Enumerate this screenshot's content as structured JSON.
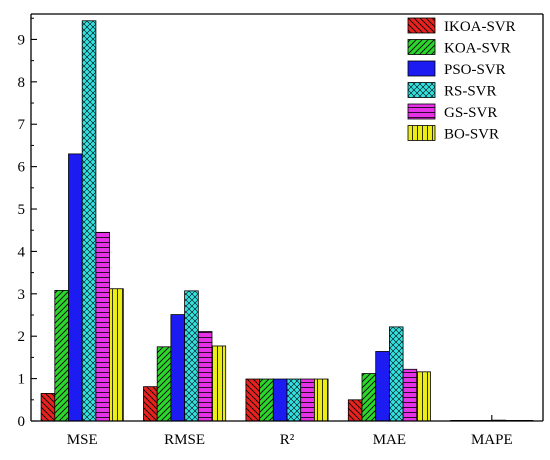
{
  "chart_data": {
    "type": "bar",
    "title": "",
    "xlabel": "",
    "ylabel": "",
    "categories": [
      "MSE",
      "RMSE",
      "R²",
      "MAE",
      "MAPE"
    ],
    "ylim": [
      0,
      9.6
    ],
    "yticks": [
      0,
      1,
      2,
      3,
      4,
      5,
      6,
      7,
      8,
      9
    ],
    "legend_position": "top-right",
    "grid": false,
    "series": [
      {
        "name": "IKOA-SVR",
        "color": "#e8231f",
        "pattern": "diag-down",
        "values": [
          0.65,
          0.81,
          0.99,
          0.5,
          0.005
        ]
      },
      {
        "name": "KOA-SVR",
        "color": "#2bd72b",
        "pattern": "diag-up",
        "values": [
          3.08,
          1.75,
          0.99,
          1.12,
          0.008
        ]
      },
      {
        "name": "PSO-SVR",
        "color": "#1c1cf2",
        "pattern": "solid",
        "values": [
          6.3,
          2.51,
          0.99,
          1.64,
          0.014
        ]
      },
      {
        "name": "RS-SVR",
        "color": "#33e0e0",
        "pattern": "crosshatch",
        "values": [
          9.44,
          3.07,
          0.99,
          2.22,
          0.02
        ]
      },
      {
        "name": "GS-SVR",
        "color": "#e632e6",
        "pattern": "horizontal",
        "values": [
          4.45,
          2.11,
          0.99,
          1.22,
          0.011
        ]
      },
      {
        "name": "BO-SVR",
        "color": "#ecec17",
        "pattern": "vertical",
        "values": [
          3.12,
          1.77,
          0.99,
          1.16,
          0.009
        ]
      }
    ]
  }
}
